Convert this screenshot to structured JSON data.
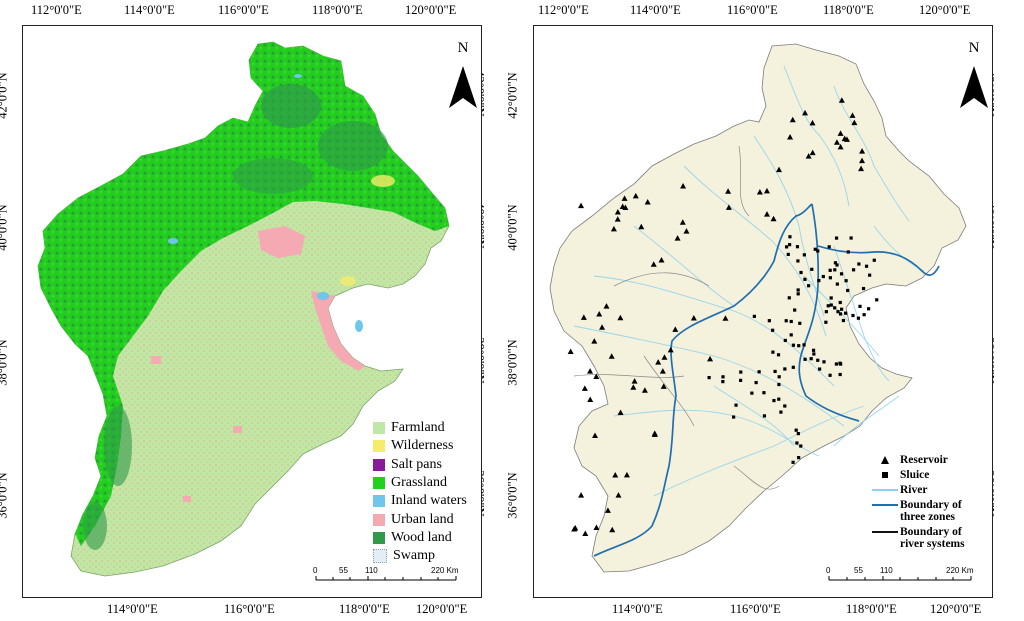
{
  "left_map": {
    "top_ticks": [
      "112°0'0\"E",
      "114°0'0\"E",
      "116°0'0\"E",
      "118°0'0\"E",
      "120°0'0\"E"
    ],
    "bottom_ticks": [
      "114°0'0\"E",
      "116°0'0\"E",
      "118°0'0\"E",
      "120°0'0\"E"
    ],
    "left_ticks": [
      "42°0'0\"N",
      "40°0'0\"N",
      "38°0'0\"N",
      "36°0'0\"N"
    ],
    "right_ticks": [
      "42°0'0\"N",
      "40°0'0\"N",
      "38°0'0\"N",
      "36°0'0\"N"
    ],
    "north": "N",
    "legend": [
      {
        "label": "Farmland",
        "color": "#bfe8a6"
      },
      {
        "label": "Wilderness",
        "color": "#f5ec6a"
      },
      {
        "label": "Salt pans",
        "color": "#8a1a9a"
      },
      {
        "label": "Grassland",
        "color": "#22d11e"
      },
      {
        "label": "Inland waters",
        "color": "#6ec6ea"
      },
      {
        "label": "Urban land",
        "color": "#f4a9b3"
      },
      {
        "label": "Wood land",
        "color": "#2f9a4a"
      },
      {
        "label": "Swamp",
        "color": "#e4ecf4"
      }
    ],
    "scale_labels": [
      "0",
      "55",
      "110",
      "220 Km"
    ]
  },
  "right_map": {
    "top_ticks": [
      "112°0'0\"E",
      "114°0'0\"E",
      "116°0'0\"E",
      "118°0'0\"E",
      "120°0'0\"E"
    ],
    "bottom_ticks": [
      "114°0'0\"E",
      "116°0'0\"E",
      "118°0'0\"E",
      "120°0'0\"E"
    ],
    "left_ticks": [
      "42°0'0\"N",
      "40°0'0\"N",
      "38°0'0\"N",
      "36°0'0\"N"
    ],
    "right_ticks": [
      "42°0'0\"N",
      "40°0'0\"N",
      "38°0'0\"N",
      "36°0'0\"N"
    ],
    "north": "N",
    "legend": {
      "reservoir": "Reservoir",
      "sluice": "Sluice",
      "river": "River",
      "boundary_zones_1": "Boundary of",
      "boundary_zones_2": "three zones",
      "boundary_rivers_1": "Boundary of",
      "boundary_rivers_2": "river systems"
    },
    "colors": {
      "river": "#8fd3ee",
      "zone_boundary": "#1f6fb0",
      "river_system_boundary": "#111111",
      "basin_fill": "#f4f1dc"
    },
    "scale_labels": [
      "0",
      "55",
      "110",
      "220 Km"
    ]
  }
}
